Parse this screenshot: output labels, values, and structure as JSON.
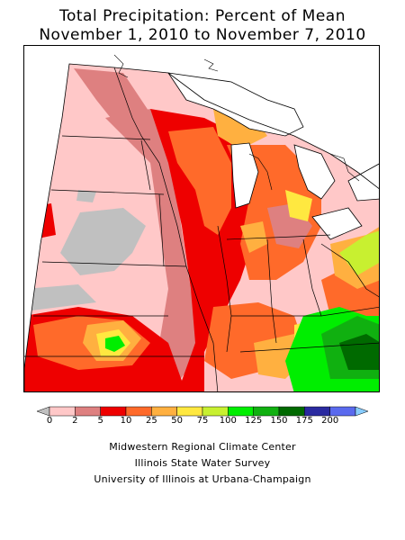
{
  "title_line1": "Total Precipitation: Percent of Mean",
  "title_line2": "November 1, 2010 to November 7, 2010",
  "legend": {
    "labels": [
      "0",
      "2",
      "5",
      "10",
      "25",
      "50",
      "75",
      "100",
      "125",
      "150",
      "175",
      "200"
    ],
    "colors": [
      "#c0c0c0",
      "#ffc8c8",
      "#de8080",
      "#ee0000",
      "#ff6a2a",
      "#ffb040",
      "#ffe840",
      "#c8f030",
      "#00ee00",
      "#10b010",
      "#006a00",
      "#2a2aa0",
      "#5a6aee",
      "#88ccff"
    ]
  },
  "credits": {
    "line1": "Midwestern Regional Climate Center",
    "line2": "Illinois State Water Survey",
    "line3": "University of Illinois at Urbana-Champaign"
  }
}
